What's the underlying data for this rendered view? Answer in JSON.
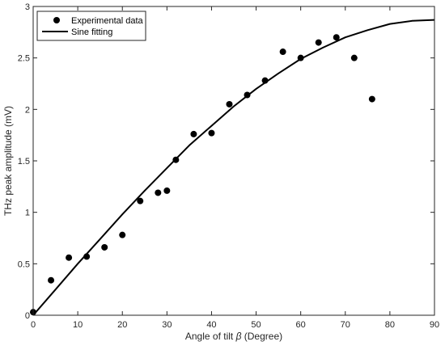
{
  "chart_data": {
    "type": "scatter",
    "title": "",
    "xlabel_pre": "Angle of tilt ",
    "xlabel_symbol": "β",
    "xlabel_post": " (Degree)",
    "ylabel": "THz peak amplitude (mV)",
    "xlim": [
      0,
      90
    ],
    "ylim": [
      0,
      3
    ],
    "xticks": [
      "0",
      "10",
      "20",
      "30",
      "40",
      "50",
      "60",
      "70",
      "80",
      "90"
    ],
    "yticks": [
      "0",
      "0.5",
      "1",
      "1.5",
      "2",
      "2.5",
      "3"
    ],
    "grid": false,
    "legend_position": "top-left",
    "series": [
      {
        "name": "Experimental data",
        "kind": "scatter",
        "color": "#000000",
        "points": [
          [
            0,
            0.03
          ],
          [
            4,
            0.34
          ],
          [
            8,
            0.56
          ],
          [
            12,
            0.57
          ],
          [
            16,
            0.66
          ],
          [
            20,
            0.78
          ],
          [
            24,
            1.11
          ],
          [
            28,
            1.19
          ],
          [
            30,
            1.21
          ],
          [
            32,
            1.51
          ],
          [
            36,
            1.76
          ],
          [
            40,
            1.77
          ],
          [
            44,
            2.05
          ],
          [
            48,
            2.14
          ],
          [
            52,
            2.28
          ],
          [
            56,
            2.56
          ],
          [
            60,
            2.5
          ],
          [
            64,
            2.65
          ],
          [
            68,
            2.7
          ],
          [
            72,
            2.5
          ],
          [
            76,
            2.1
          ]
        ]
      },
      {
        "name": "Sine fitting",
        "kind": "line",
        "color": "#000000",
        "points": [
          [
            0,
            0.0
          ],
          [
            5,
            0.25
          ],
          [
            10,
            0.5
          ],
          [
            15,
            0.74
          ],
          [
            20,
            0.98
          ],
          [
            25,
            1.21
          ],
          [
            30,
            1.43
          ],
          [
            35,
            1.65
          ],
          [
            40,
            1.84
          ],
          [
            45,
            2.03
          ],
          [
            50,
            2.2
          ],
          [
            55,
            2.35
          ],
          [
            60,
            2.49
          ],
          [
            65,
            2.6
          ],
          [
            70,
            2.7
          ],
          [
            75,
            2.77
          ],
          [
            80,
            2.83
          ],
          [
            85,
            2.86
          ],
          [
            90,
            2.87
          ]
        ]
      }
    ]
  }
}
